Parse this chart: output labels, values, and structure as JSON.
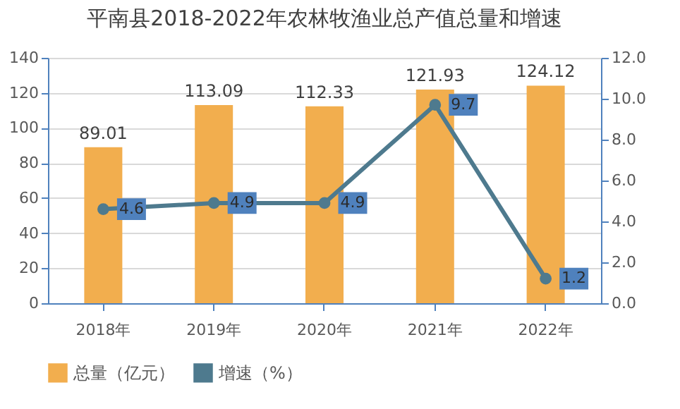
{
  "chart_data": {
    "type": "bar",
    "title": "平南县2018-2022年农林牧渔业总产值总量和增速",
    "categories": [
      "2018年",
      "2019年",
      "2020年",
      "2021年",
      "2022年"
    ],
    "series": [
      {
        "name": "总量（亿元）",
        "type": "bar",
        "color": "#f2ae4e",
        "values": [
          89.01,
          113.09,
          112.33,
          121.93,
          124.12
        ]
      },
      {
        "name": "增速（%）",
        "type": "line",
        "axis": "y2",
        "color": "#4e7a8e",
        "marker": "circle",
        "values": [
          4.6,
          4.9,
          4.9,
          9.7,
          1.2
        ]
      }
    ],
    "ylim": [
      0,
      140
    ],
    "yticks": [
      0,
      20,
      40,
      60,
      80,
      100,
      120,
      140
    ],
    "y2lim": [
      0,
      12
    ],
    "y2ticks": [
      {
        "value": 0,
        "label": "0.0"
      },
      {
        "value": 2,
        "label": "2.0"
      },
      {
        "value": 4,
        "label": "4.0"
      },
      {
        "value": 6,
        "label": "6.0"
      },
      {
        "value": 8,
        "label": "8.0"
      },
      {
        "value": 10,
        "label": "10.0"
      },
      {
        "value": 12,
        "label": "12.0"
      }
    ],
    "grid": "y",
    "legend": "bottom",
    "data_labels": true
  }
}
